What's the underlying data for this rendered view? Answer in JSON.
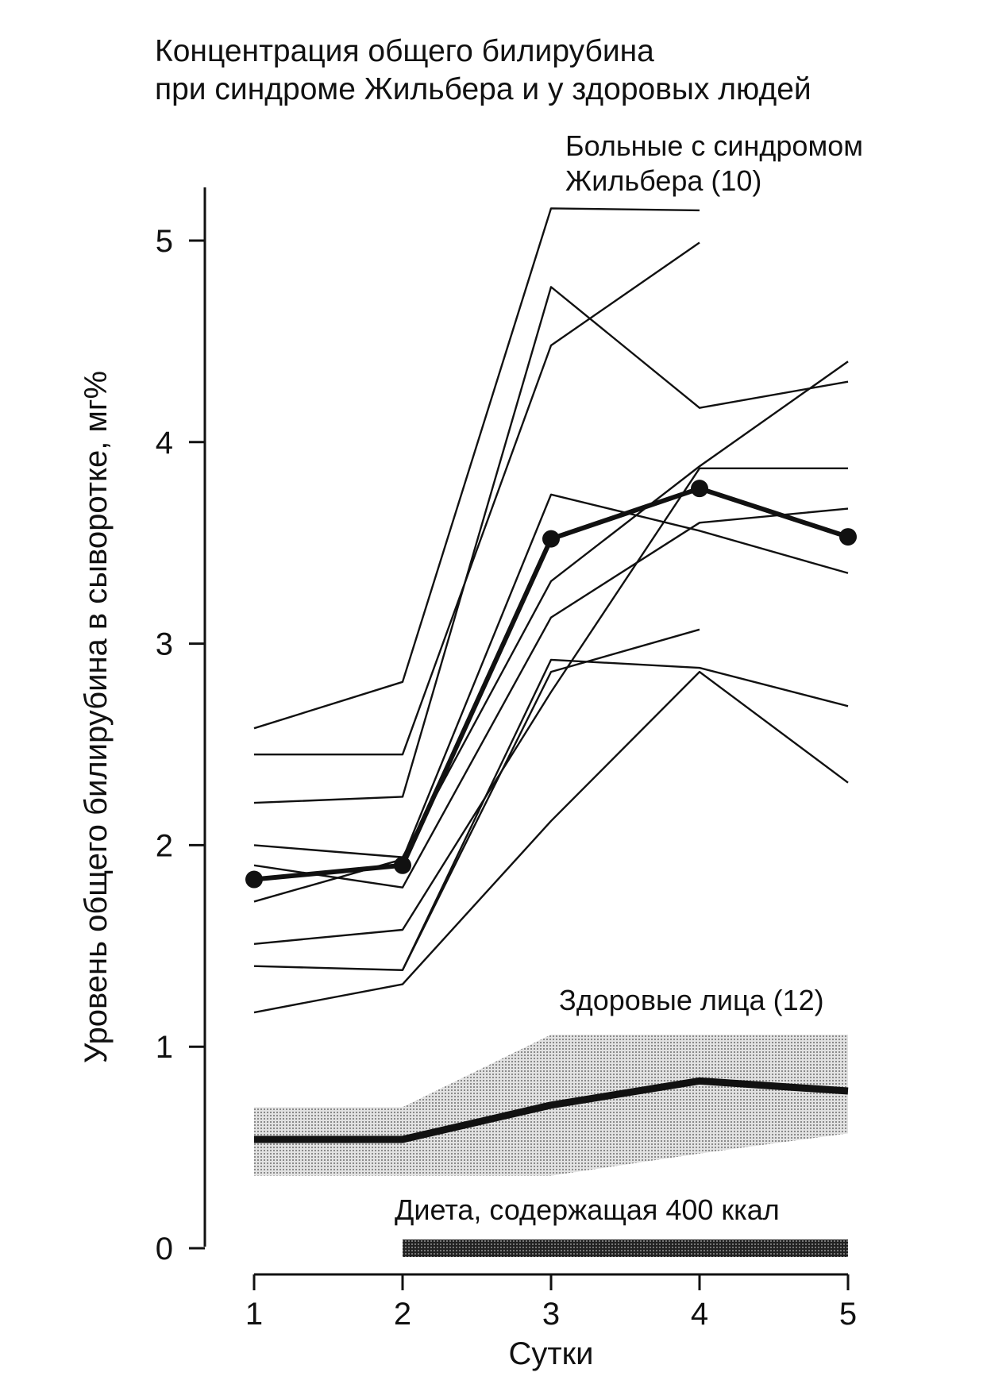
{
  "chart_data": {
    "type": "line",
    "title_lines": [
      "Концентрация общего билирубина",
      "при синдроме Жильбера и у здоровых людей"
    ],
    "xlabel": "Сутки",
    "ylabel": "Уровень общего билирубина в сыворотке, мг%",
    "x": [
      1,
      2,
      3,
      4,
      5
    ],
    "x_ticks": [
      "1",
      "2",
      "3",
      "4",
      "5"
    ],
    "y_ticks": [
      "0",
      "1",
      "2",
      "3",
      "4",
      "5"
    ],
    "ylim": [
      0,
      5.25
    ],
    "xlim": [
      1,
      5
    ],
    "gilbert_label_lines": [
      "Больные с синдромом",
      "Жильбера (10)"
    ],
    "healthy_label": "Здоровые лица (12)",
    "diet_label": "Диета, содержащая 400 ккал",
    "diet_period": [
      2,
      5
    ],
    "gilbert_individual": [
      [
        2.58,
        2.81,
        5.16,
        5.15,
        null
      ],
      [
        2.45,
        2.45,
        4.48,
        4.99,
        null
      ],
      [
        2.21,
        2.24,
        4.77,
        4.17,
        4.3
      ],
      [
        2.0,
        1.94,
        3.31,
        3.88,
        4.4
      ],
      [
        1.72,
        1.93,
        3.74,
        3.56,
        3.35
      ],
      [
        1.9,
        1.79,
        3.13,
        3.6,
        3.67
      ],
      [
        1.51,
        1.58,
        2.76,
        3.87,
        3.87
      ],
      [
        1.4,
        1.38,
        2.92,
        2.88,
        2.69
      ],
      [
        1.17,
        1.31,
        2.12,
        2.86,
        2.31
      ],
      [
        null,
        1.38,
        2.86,
        3.07,
        null
      ]
    ],
    "series": [
      {
        "name": "Больные с синдромом Жильбера (10)",
        "values": [
          1.83,
          1.9,
          3.52,
          3.77,
          3.53
        ]
      },
      {
        "name": "Здоровые лица (12)",
        "values": [
          0.54,
          0.54,
          0.71,
          0.83,
          0.78
        ]
      }
    ],
    "healthy_range": {
      "upper": [
        0.7,
        0.7,
        1.06,
        1.06,
        1.06
      ],
      "lower": [
        0.36,
        0.36,
        0.36,
        0.47,
        0.57
      ]
    },
    "colors": {
      "ink": "#111111",
      "band": "#c8c8c8"
    }
  }
}
